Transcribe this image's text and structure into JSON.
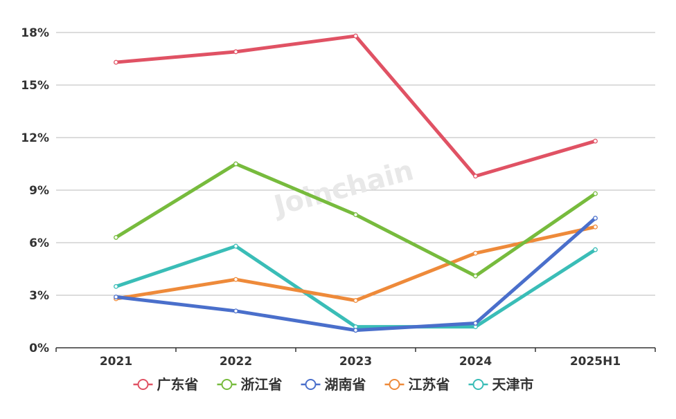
{
  "chart_data": {
    "type": "line",
    "categories": [
      "2021",
      "2022",
      "2023",
      "2024",
      "2025H1"
    ],
    "ylim": [
      0,
      18
    ],
    "yticks": [
      0,
      3,
      6,
      9,
      12,
      15,
      18
    ],
    "ytick_labels": [
      "0%",
      "3%",
      "6%",
      "9%",
      "12%",
      "15%",
      "18%"
    ],
    "grid": "horizontal",
    "legend_position": "bottom",
    "watermark": "Joinchain",
    "series": [
      {
        "name": "广东省",
        "color": "#e05264",
        "values": [
          16.3,
          16.9,
          17.8,
          9.8,
          11.8
        ]
      },
      {
        "name": "浙江省",
        "color": "#77bb3d",
        "values": [
          6.3,
          10.5,
          7.6,
          4.1,
          8.8
        ]
      },
      {
        "name": "湖南省",
        "color": "#4a6fcb",
        "values": [
          2.9,
          2.1,
          1.0,
          1.4,
          7.4
        ]
      },
      {
        "name": "江苏省",
        "color": "#ee8a3a",
        "values": [
          2.8,
          3.9,
          2.7,
          5.4,
          6.9
        ]
      },
      {
        "name": "天津市",
        "color": "#3abdb7",
        "values": [
          3.5,
          5.8,
          1.2,
          1.2,
          5.6
        ]
      }
    ]
  }
}
